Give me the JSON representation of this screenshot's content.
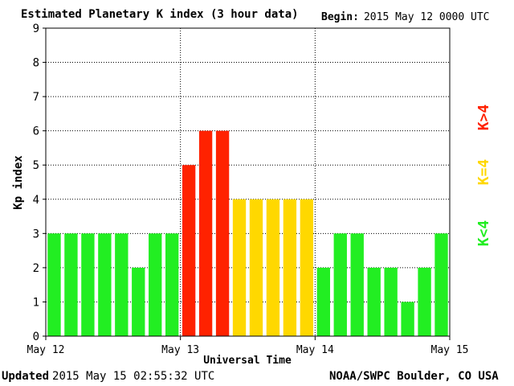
{
  "header": {
    "title": "Estimated Planetary K index (3 hour data)",
    "begin_label": "Begin:",
    "begin_value": "2015 May 12 0000 UTC"
  },
  "footer": {
    "updated_label": "Updated",
    "updated_value": "2015 May 15 02:55:32 UTC",
    "credit": "NOAA/SWPC Boulder, CO USA"
  },
  "legend": [
    {
      "label": "K<4",
      "color": "#22ee22"
    },
    {
      "label": "K=4",
      "color": "#ffd800"
    },
    {
      "label": "K>4",
      "color": "#ff2200"
    }
  ],
  "chart_data": {
    "type": "bar",
    "title": "Estimated Planetary K index (3 hour data)",
    "xlabel": "Universal Time",
    "ylabel": "Kp index",
    "ylim": [
      0,
      9
    ],
    "yticks": [
      0,
      1,
      2,
      3,
      4,
      5,
      6,
      7,
      8,
      9
    ],
    "xtick_labels": [
      "May 12",
      "May 13",
      "May 14",
      "May 15"
    ],
    "bars_per_day": 8,
    "values": [
      3,
      3,
      3,
      3,
      3,
      2,
      3,
      3,
      5,
      6,
      6,
      4,
      4,
      4,
      4,
      4,
      2,
      3,
      3,
      2,
      2,
      1,
      2,
      3
    ],
    "colors": {
      "below4": "#22ee22",
      "equal4": "#ffd800",
      "above4": "#ff2200"
    },
    "grid": true
  }
}
